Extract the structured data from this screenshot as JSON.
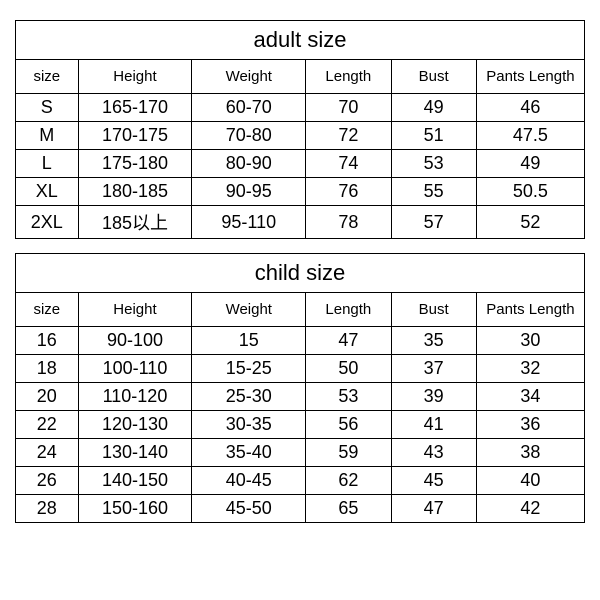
{
  "adult": {
    "title": "adult size",
    "columns": [
      "size",
      "Height",
      "Weight",
      "Length",
      "Bust",
      "Pants Length"
    ],
    "rows": [
      [
        "S",
        "165-170",
        "60-70",
        "70",
        "49",
        "46"
      ],
      [
        "M",
        "170-175",
        "70-80",
        "72",
        "51",
        "47.5"
      ],
      [
        "L",
        "175-180",
        "80-90",
        "74",
        "53",
        "49"
      ],
      [
        "XL",
        "180-185",
        "90-95",
        "76",
        "55",
        "50.5"
      ],
      [
        "2XL",
        "185以上",
        "95-110",
        "78",
        "57",
        "52"
      ]
    ]
  },
  "child": {
    "title": "child size",
    "columns": [
      "size",
      "Height",
      "Weight",
      "Length",
      "Bust",
      "Pants Length"
    ],
    "rows": [
      [
        "16",
        "90-100",
        "15",
        "47",
        "35",
        "30"
      ],
      [
        "18",
        "100-110",
        "15-25",
        "50",
        "37",
        "32"
      ],
      [
        "20",
        "110-120",
        "25-30",
        "53",
        "39",
        "34"
      ],
      [
        "22",
        "120-130",
        "30-35",
        "56",
        "41",
        "36"
      ],
      [
        "24",
        "130-140",
        "35-40",
        "59",
        "43",
        "38"
      ],
      [
        "26",
        "140-150",
        "40-45",
        "62",
        "45",
        "40"
      ],
      [
        "28",
        "150-160",
        "45-50",
        "65",
        "47",
        "42"
      ]
    ]
  },
  "style": {
    "border_color": "#000000",
    "background": "#ffffff",
    "title_fontsize": 22,
    "header_fontsize": 15,
    "data_fontsize": 18
  }
}
